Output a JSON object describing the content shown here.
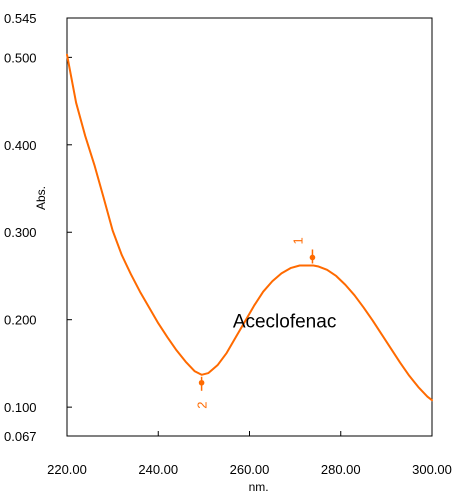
{
  "chart_data": {
    "type": "line",
    "title": "",
    "xlabel": "nm.",
    "ylabel": "Abs.",
    "xlim": [
      220.0,
      300.0
    ],
    "ylim": [
      0.067,
      0.545
    ],
    "x_ticks": [
      220.0,
      240.0,
      260.0,
      280.0,
      300.0
    ],
    "x_tick_labels": [
      "220.00",
      "240.00",
      "260.00",
      "280.00",
      "300.00"
    ],
    "y_ticks": [
      0.545,
      0.5,
      0.4,
      0.3,
      0.2,
      0.1,
      0.067
    ],
    "y_tick_labels": [
      "0.545",
      "0.500",
      "0.400",
      "0.300",
      "0.200",
      "0.100",
      "0.067"
    ],
    "grid": false,
    "series": [
      {
        "color": "#ff6a00",
        "x": [
          220,
          222,
          224,
          226,
          228,
          230,
          232,
          234,
          236,
          238,
          240,
          242,
          244,
          246,
          248,
          249.5,
          251,
          253,
          255,
          257,
          259,
          261,
          263,
          265,
          267,
          269,
          271,
          273,
          274,
          275,
          277,
          279,
          281,
          283,
          285,
          287,
          289,
          291,
          293,
          295,
          297,
          299,
          300
        ],
        "y": [
          0.503,
          0.448,
          0.41,
          0.377,
          0.34,
          0.302,
          0.274,
          0.252,
          0.232,
          0.214,
          0.196,
          0.18,
          0.165,
          0.152,
          0.141,
          0.137,
          0.139,
          0.148,
          0.162,
          0.18,
          0.198,
          0.216,
          0.232,
          0.244,
          0.253,
          0.259,
          0.262,
          0.262,
          0.262,
          0.261,
          0.257,
          0.25,
          0.24,
          0.228,
          0.214,
          0.199,
          0.183,
          0.167,
          0.151,
          0.136,
          0.123,
          0.112,
          0.108
        ]
      }
    ],
    "markers": [
      {
        "label": "1",
        "x": 273.8,
        "y": 0.262
      },
      {
        "label": "2",
        "x": 249.5,
        "y": 0.137
      }
    ],
    "annotations": [
      {
        "text": "Aceclofenac",
        "x": 257.0,
        "y": 0.2
      }
    ]
  }
}
